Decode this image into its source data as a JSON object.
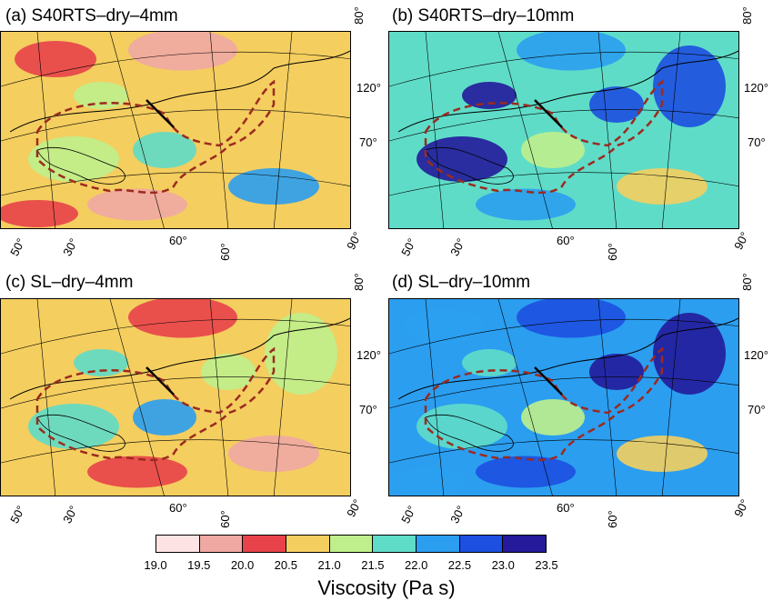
{
  "panels": [
    {
      "title": "(a) S40RTS–dry–4mm",
      "labels": {
        "top_right": "80°",
        "lat_120": "120°",
        "lat_70": "70°",
        "b_50": "50°",
        "b_30": "30°",
        "b_60a": "60°",
        "b_60b": "60°",
        "b_90": "90°"
      },
      "palette": [
        "#e8434a",
        "#f0a8a3",
        "#f4ce5f",
        "#bfef8c",
        "#5fdcc8",
        "#2b9ef0"
      ],
      "base_color": "#f4ce5f"
    },
    {
      "title": "(b) S40RTS–dry–10mm",
      "labels": {
        "top_right": "80°",
        "lat_120": "120°",
        "lat_70": "70°",
        "b_50": "50°",
        "b_30": "30°",
        "b_60a": "60°",
        "b_60b": "60°",
        "b_90": "90°"
      },
      "palette": [
        "#5fdcc8",
        "#2b9ef0",
        "#1d4fe0",
        "#241a9a",
        "#bfef8c",
        "#f4ce5f"
      ],
      "base_color": "#5fdcc8"
    },
    {
      "title": "(c) SL–dry–4mm",
      "labels": {
        "top_right": "80°",
        "lat_120": "120°",
        "lat_70": "70°",
        "b_50": "50°",
        "b_30": "30°",
        "b_60a": "60°",
        "b_60b": "60°",
        "b_90": "90°"
      },
      "palette": [
        "#f4ce5f",
        "#e8434a",
        "#bfef8c",
        "#5fdcc8",
        "#2b9ef0",
        "#f0a8a3"
      ],
      "base_color": "#f4ce5f"
    },
    {
      "title": "(d) SL–dry–10mm",
      "labels": {
        "top_right": "80°",
        "lat_120": "120°",
        "lat_70": "70°",
        "b_50": "50°",
        "b_30": "30°",
        "b_60a": "60°",
        "b_60b": "60°",
        "b_90": "90°"
      },
      "palette": [
        "#2b9ef0",
        "#1d4fe0",
        "#241a9a",
        "#5fdcc8",
        "#bfef8c",
        "#f4ce5f"
      ],
      "base_color": "#2b9ef0"
    }
  ],
  "colorbar": {
    "ticks": [
      "19.0",
      "19.5",
      "20.0",
      "20.5",
      "21.0",
      "21.5",
      "22.0",
      "22.5",
      "23.0",
      "23.5"
    ],
    "colors": [
      "#fde3e3",
      "#f0a8a3",
      "#e8434a",
      "#f4ce5f",
      "#bfef8c",
      "#5fdcc8",
      "#2b9ef0",
      "#1d4fe0",
      "#241a9a"
    ],
    "title": "Viscosity (Pa s)"
  }
}
